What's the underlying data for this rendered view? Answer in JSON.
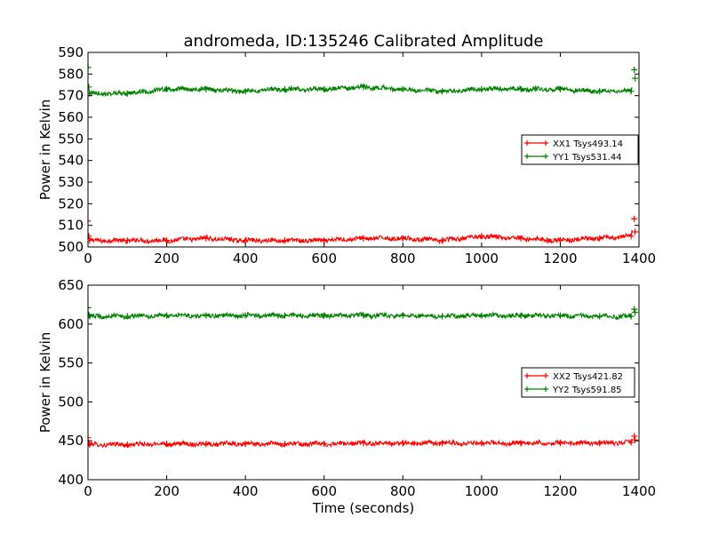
{
  "chart_data": [
    {
      "type": "line",
      "title": "andromeda, ID:135246 Calibrated Amplitude",
      "xlabel": "",
      "ylabel": "Power in Kelvin",
      "xlim": [
        0,
        1400
      ],
      "ylim": [
        500,
        590
      ],
      "xticks": [
        0,
        200,
        400,
        600,
        800,
        1000,
        1200,
        1400
      ],
      "xtick_labels": [
        "0",
        "200",
        "400",
        "600",
        "800",
        "1000",
        "1200",
        "1400"
      ],
      "yticks": [
        500,
        510,
        520,
        530,
        540,
        550,
        560,
        570,
        580,
        590
      ],
      "ytick_labels": [
        "500",
        "510",
        "520",
        "530",
        "540",
        "550",
        "560",
        "570",
        "580",
        "590"
      ],
      "grid": false,
      "legend_position": "right",
      "marker": "plus",
      "series": [
        {
          "name": "XX1 Tsys493.14",
          "color": "#ff0000",
          "x": [
            0,
            2,
            4,
            100,
            200,
            300,
            400,
            500,
            600,
            700,
            800,
            900,
            1000,
            1100,
            1200,
            1300,
            1380,
            1388,
            1390
          ],
          "y": [
            512,
            505,
            503,
            503,
            503,
            504,
            503,
            503,
            503,
            504,
            504,
            503,
            505,
            504,
            503,
            504,
            505,
            513,
            507
          ]
        },
        {
          "name": "YY1 Tsys531.44",
          "color": "#008000",
          "x": [
            0,
            2,
            4,
            100,
            200,
            300,
            400,
            500,
            600,
            700,
            800,
            900,
            1000,
            1100,
            1200,
            1300,
            1380,
            1388,
            1390
          ],
          "y": [
            583,
            574,
            571,
            571,
            573,
            573,
            572,
            573,
            573,
            574,
            573,
            572,
            573,
            573,
            573,
            572,
            572,
            582,
            578
          ]
        }
      ]
    },
    {
      "type": "line",
      "title": "",
      "xlabel": "Time (seconds)",
      "ylabel": "Power in Kelvin",
      "xlim": [
        0,
        1400
      ],
      "ylim": [
        400,
        650
      ],
      "xticks": [
        0,
        200,
        400,
        600,
        800,
        1000,
        1200,
        1400
      ],
      "xtick_labels": [
        "0",
        "200",
        "400",
        "600",
        "800",
        "1000",
        "1200",
        "1400"
      ],
      "yticks": [
        400,
        450,
        500,
        550,
        600,
        650
      ],
      "ytick_labels": [
        "400",
        "450",
        "500",
        "550",
        "600",
        "650"
      ],
      "grid": false,
      "legend_position": "right",
      "marker": "plus",
      "series": [
        {
          "name": "XX2 Tsys421.82",
          "color": "#ff0000",
          "x": [
            0,
            2,
            4,
            100,
            200,
            300,
            400,
            500,
            600,
            700,
            800,
            900,
            1000,
            1100,
            1200,
            1300,
            1380,
            1388,
            1390
          ],
          "y": [
            454,
            447,
            445,
            445,
            446,
            446,
            446,
            446,
            446,
            447,
            447,
            447,
            447,
            447,
            447,
            447,
            448,
            456,
            451
          ]
        },
        {
          "name": "YY2 Tsys591.85",
          "color": "#008000",
          "x": [
            0,
            2,
            4,
            100,
            200,
            300,
            400,
            500,
            600,
            700,
            800,
            900,
            1000,
            1100,
            1200,
            1300,
            1380,
            1388,
            1390
          ],
          "y": [
            621,
            612,
            610,
            610,
            611,
            611,
            611,
            611,
            611,
            611,
            611,
            610,
            611,
            611,
            611,
            610,
            610,
            619,
            615
          ]
        }
      ]
    }
  ]
}
